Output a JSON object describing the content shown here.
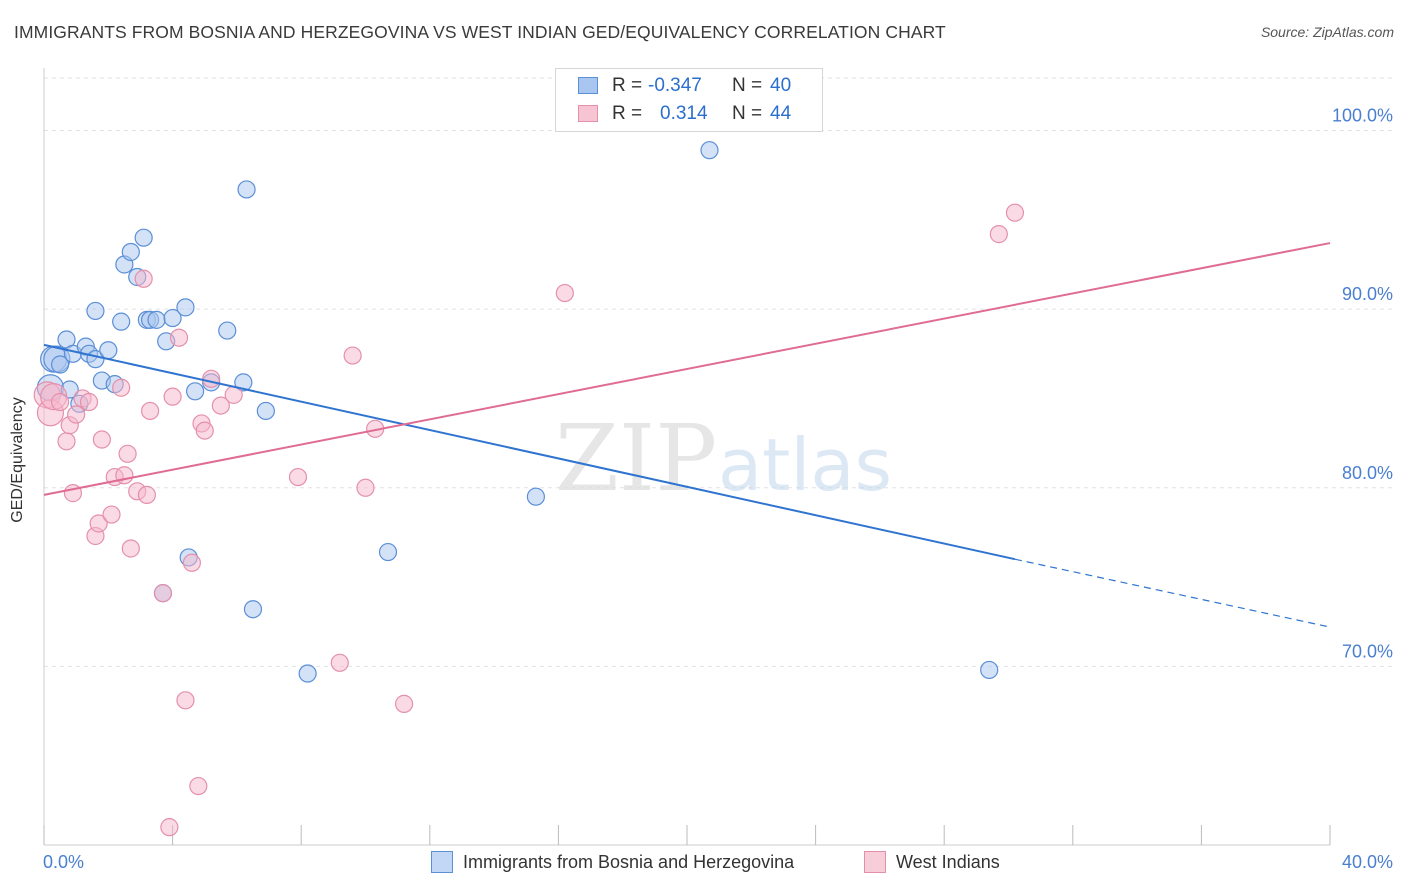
{
  "title": "IMMIGRANTS FROM BOSNIA AND HERZEGOVINA VS WEST INDIAN GED/EQUIVALENCY CORRELATION CHART",
  "source": "Source: ZipAtlas.com",
  "watermark": {
    "zip": "ZIP",
    "atlas": "atlas"
  },
  "stats": {
    "r_label": "R =",
    "n_label": "N =",
    "series1": {
      "r": "-0.347",
      "n": "40"
    },
    "series2": {
      "r": "0.314",
      "n": "44"
    }
  },
  "legend": {
    "series1": "Immigrants from Bosnia and Herzegovina",
    "series2": "West Indians"
  },
  "axis": {
    "x_min_label": "0.0%",
    "x_max_label": "40.0%"
  },
  "colors": {
    "blue_fill": "#a9c6f0",
    "blue_stroke": "#5b8fd6",
    "blue_line": "#2f74d0",
    "pink_fill": "#f6b8cb",
    "pink_stroke": "#e590ab",
    "pink_line": "#e06b93",
    "grid": "#e2e2e2",
    "tick_label": "#4a7fd0"
  },
  "chart_data": {
    "type": "scatter",
    "title": "IMMIGRANTS FROM BOSNIA AND HERZEGOVINA VS WEST INDIAN GED/EQUIVALENCY CORRELATION CHART",
    "xlabel": "",
    "ylabel": "GED/Equivalency",
    "xlim": [
      0,
      40
    ],
    "ylim": [
      60,
      103.5
    ],
    "yticks": [
      70,
      80,
      90,
      100
    ],
    "ytick_labels": [
      "70.0%",
      "80.0%",
      "90.0%",
      "100.0%"
    ],
    "series": [
      {
        "name": "Immigrants from Bosnia and Herzegovina",
        "color": "blue",
        "points": [
          [
            0.2,
            85.6
          ],
          [
            0.3,
            87.2
          ],
          [
            0.4,
            87.2
          ],
          [
            0.5,
            86.9
          ],
          [
            0.7,
            88.3
          ],
          [
            0.8,
            85.5
          ],
          [
            0.9,
            87.5
          ],
          [
            1.1,
            84.7
          ],
          [
            1.3,
            87.9
          ],
          [
            1.4,
            87.5
          ],
          [
            1.6,
            87.2
          ],
          [
            1.6,
            89.9
          ],
          [
            1.8,
            86.0
          ],
          [
            2.0,
            87.7
          ],
          [
            2.2,
            85.8
          ],
          [
            2.4,
            89.3
          ],
          [
            2.5,
            92.5
          ],
          [
            2.7,
            93.2
          ],
          [
            2.9,
            91.8
          ],
          [
            3.1,
            94.0
          ],
          [
            3.2,
            89.4
          ],
          [
            3.3,
            89.4
          ],
          [
            3.5,
            89.4
          ],
          [
            3.7,
            74.1
          ],
          [
            3.8,
            88.2
          ],
          [
            4.0,
            89.5
          ],
          [
            4.4,
            90.1
          ],
          [
            4.5,
            76.1
          ],
          [
            4.7,
            85.4
          ],
          [
            5.2,
            85.9
          ],
          [
            5.7,
            88.8
          ],
          [
            6.3,
            96.7
          ],
          [
            6.2,
            85.9
          ],
          [
            6.5,
            73.2
          ],
          [
            6.9,
            84.3
          ],
          [
            8.2,
            69.6
          ],
          [
            10.7,
            76.4
          ],
          [
            15.3,
            79.5
          ],
          [
            20.7,
            98.9
          ],
          [
            29.4,
            69.8
          ]
        ]
      },
      {
        "name": "West Indians",
        "color": "pink",
        "points": [
          [
            0.1,
            85.2
          ],
          [
            0.2,
            84.2
          ],
          [
            0.3,
            85.1
          ],
          [
            0.5,
            84.8
          ],
          [
            0.7,
            82.6
          ],
          [
            0.8,
            83.5
          ],
          [
            0.9,
            79.7
          ],
          [
            1.0,
            84.1
          ],
          [
            1.2,
            85.0
          ],
          [
            1.4,
            84.8
          ],
          [
            1.6,
            77.3
          ],
          [
            1.7,
            78.0
          ],
          [
            1.8,
            82.7
          ],
          [
            2.1,
            78.5
          ],
          [
            2.2,
            80.6
          ],
          [
            2.4,
            85.6
          ],
          [
            2.5,
            80.7
          ],
          [
            2.6,
            81.9
          ],
          [
            2.7,
            76.6
          ],
          [
            2.9,
            79.8
          ],
          [
            3.1,
            91.7
          ],
          [
            3.2,
            79.6
          ],
          [
            3.3,
            84.3
          ],
          [
            3.7,
            74.1
          ],
          [
            3.9,
            61.0
          ],
          [
            4.0,
            85.1
          ],
          [
            4.2,
            88.4
          ],
          [
            4.4,
            68.1
          ],
          [
            4.6,
            75.8
          ],
          [
            4.8,
            63.3
          ],
          [
            4.9,
            83.6
          ],
          [
            5.0,
            83.2
          ],
          [
            5.2,
            86.1
          ],
          [
            5.5,
            84.6
          ],
          [
            5.9,
            85.2
          ],
          [
            7.9,
            80.6
          ],
          [
            9.2,
            70.2
          ],
          [
            9.6,
            87.4
          ],
          [
            10.0,
            80.0
          ],
          [
            10.3,
            83.3
          ],
          [
            11.2,
            67.9
          ],
          [
            16.2,
            90.9
          ],
          [
            29.7,
            94.2
          ],
          [
            30.2,
            95.4
          ]
        ]
      }
    ],
    "trendlines": [
      {
        "series": "Immigrants from Bosnia and Herzegovina",
        "x_start": 0,
        "y_start": 88.0,
        "x_solid_end": 30.2,
        "y_solid_end": 76.0,
        "x_end": 40,
        "y_end": 72.2,
        "style_after_solid": "dashed"
      },
      {
        "series": "West Indians",
        "x_start": 0,
        "y_start": 79.6,
        "x_end": 40,
        "y_end": 93.7,
        "style_after_solid": "solid"
      }
    ]
  }
}
